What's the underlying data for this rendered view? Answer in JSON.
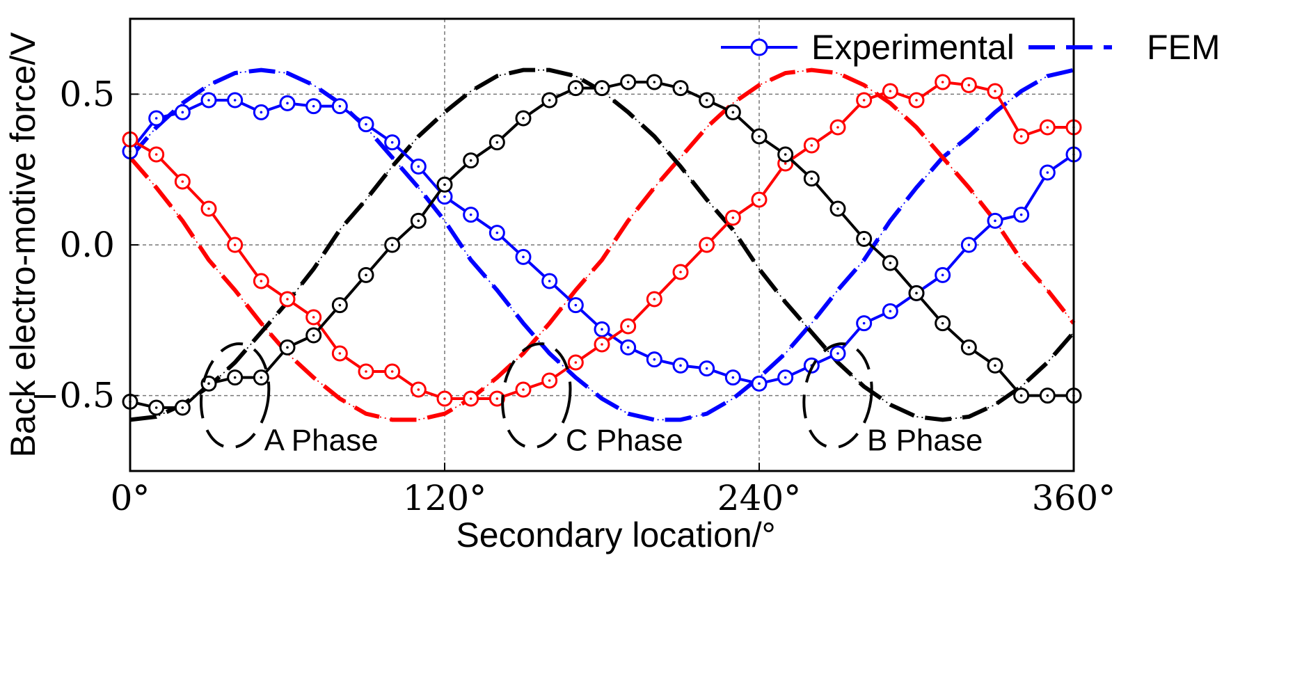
{
  "chart_data": {
    "type": "line",
    "title": "",
    "xlabel": "Secondary location/°",
    "ylabel": "Back electro-motive force/V",
    "xlim": [
      0,
      360
    ],
    "ylim": [
      -0.75,
      0.75
    ],
    "x_ticks": [
      0,
      120,
      240,
      360
    ],
    "x_tick_labels": [
      "0°",
      "120°",
      "240°",
      "360°"
    ],
    "y_ticks": [
      -0.5,
      0.0,
      0.5
    ],
    "y_tick_labels": [
      "−0.5",
      "0.0",
      "0.5"
    ],
    "grid": true,
    "legend": {
      "placement": "top-right",
      "entries": [
        {
          "label": "Experimental",
          "style": "solid-circle-markers",
          "color": "#0000ff"
        },
        {
          "label": "FEM",
          "style": "dashed",
          "color": "#0000ff"
        }
      ]
    },
    "colors": {
      "phase_a": "#ff0000",
      "phase_b": "#0000ff",
      "phase_c": "#000000"
    },
    "fem_model": {
      "amplitude": 0.58
    },
    "series": [
      {
        "kind": "FEM",
        "color": "#0000ff",
        "x": [
          0,
          10,
          20,
          30,
          40,
          50,
          60,
          70,
          80,
          90,
          100,
          110,
          120,
          130,
          140,
          150,
          160,
          170,
          180,
          190,
          200,
          210,
          220,
          230,
          240,
          250,
          260,
          270,
          280,
          290,
          300,
          310,
          320,
          330,
          340,
          350,
          360
        ],
        "y": [
          0.29,
          0.39,
          0.47,
          0.53,
          0.57,
          0.58,
          0.57,
          0.53,
          0.47,
          0.39,
          0.29,
          0.19,
          0.08,
          -0.05,
          -0.15,
          -0.26,
          -0.36,
          -0.44,
          -0.51,
          -0.56,
          -0.58,
          -0.58,
          -0.56,
          -0.51,
          -0.44,
          -0.36,
          -0.26,
          -0.15,
          -0.05,
          0.08,
          0.19,
          0.29,
          0.36,
          0.44,
          0.51,
          0.56,
          0.58
        ]
      },
      {
        "kind": "FEM",
        "color": "#ff0000",
        "x": [
          0,
          10,
          20,
          30,
          40,
          50,
          60,
          70,
          80,
          90,
          100,
          110,
          120,
          130,
          140,
          150,
          160,
          170,
          180,
          190,
          200,
          210,
          220,
          230,
          240,
          250,
          260,
          270,
          280,
          290,
          300,
          310,
          320,
          330,
          340,
          350,
          360
        ],
        "y": [
          0.29,
          0.19,
          0.08,
          -0.05,
          -0.15,
          -0.26,
          -0.36,
          -0.44,
          -0.51,
          -0.56,
          -0.58,
          -0.58,
          -0.56,
          -0.51,
          -0.44,
          -0.36,
          -0.26,
          -0.15,
          -0.05,
          0.08,
          0.19,
          0.29,
          0.39,
          0.47,
          0.53,
          0.57,
          0.58,
          0.57,
          0.53,
          0.47,
          0.39,
          0.29,
          0.19,
          0.08,
          -0.05,
          -0.15,
          -0.26
        ]
      },
      {
        "kind": "FEM",
        "color": "#000000",
        "x": [
          0,
          10,
          20,
          30,
          40,
          50,
          60,
          70,
          80,
          90,
          100,
          110,
          120,
          130,
          140,
          150,
          160,
          170,
          180,
          190,
          200,
          210,
          220,
          230,
          240,
          250,
          260,
          270,
          280,
          290,
          300,
          310,
          320,
          330,
          340,
          350,
          360
        ],
        "y": [
          -0.58,
          -0.57,
          -0.53,
          -0.47,
          -0.39,
          -0.29,
          -0.19,
          -0.08,
          0.05,
          0.15,
          0.26,
          0.36,
          0.44,
          0.51,
          0.56,
          0.58,
          0.58,
          0.56,
          0.51,
          0.44,
          0.36,
          0.26,
          0.15,
          0.05,
          -0.08,
          -0.19,
          -0.29,
          -0.39,
          -0.47,
          -0.53,
          -0.57,
          -0.58,
          -0.57,
          -0.53,
          -0.47,
          -0.39,
          -0.29
        ]
      },
      {
        "kind": "Experimental",
        "color": "#0000ff",
        "x": [
          0,
          10,
          20,
          30,
          40,
          50,
          60,
          70,
          80,
          90,
          100,
          110,
          120,
          130,
          140,
          150,
          160,
          170,
          180,
          190,
          200,
          210,
          220,
          230,
          240,
          250,
          260,
          270,
          280,
          290,
          300,
          310,
          320,
          330,
          340,
          350,
          360
        ],
        "y": [
          0.31,
          0.42,
          0.44,
          0.48,
          0.48,
          0.44,
          0.47,
          0.46,
          0.46,
          0.4,
          0.34,
          0.26,
          0.16,
          0.1,
          0.04,
          -0.04,
          -0.12,
          -0.2,
          -0.28,
          -0.34,
          -0.38,
          -0.4,
          -0.41,
          -0.44,
          -0.46,
          -0.44,
          -0.4,
          -0.36,
          -0.26,
          -0.22,
          -0.16,
          -0.1,
          0.0,
          0.08,
          0.1,
          0.24,
          0.3
        ]
      },
      {
        "kind": "Experimental",
        "color": "#ff0000",
        "x": [
          0,
          10,
          20,
          30,
          40,
          50,
          60,
          70,
          80,
          90,
          100,
          110,
          120,
          130,
          140,
          150,
          160,
          170,
          180,
          190,
          200,
          210,
          220,
          230,
          240,
          250,
          260,
          270,
          280,
          290,
          300,
          310,
          320,
          330,
          340,
          350,
          360
        ],
        "y": [
          0.35,
          0.3,
          0.21,
          0.12,
          0.0,
          -0.12,
          -0.18,
          -0.24,
          -0.36,
          -0.42,
          -0.42,
          -0.48,
          -0.51,
          -0.51,
          -0.51,
          -0.48,
          -0.45,
          -0.39,
          -0.33,
          -0.27,
          -0.18,
          -0.09,
          0.0,
          0.09,
          0.15,
          0.27,
          0.33,
          0.39,
          0.48,
          0.51,
          0.48,
          0.54,
          0.53,
          0.51,
          0.36,
          0.39,
          0.39
        ]
      },
      {
        "kind": "Experimental",
        "color": "#000000",
        "x": [
          0,
          10,
          20,
          30,
          40,
          50,
          60,
          70,
          80,
          90,
          100,
          110,
          120,
          130,
          140,
          150,
          160,
          170,
          180,
          190,
          200,
          210,
          220,
          230,
          240,
          250,
          260,
          270,
          280,
          290,
          300,
          310,
          320,
          330,
          340,
          350,
          360
        ],
        "y": [
          -0.52,
          -0.54,
          -0.54,
          -0.46,
          -0.44,
          -0.44,
          -0.34,
          -0.3,
          -0.2,
          -0.1,
          0.0,
          0.08,
          0.2,
          0.28,
          0.34,
          0.42,
          0.48,
          0.52,
          0.52,
          0.54,
          0.54,
          0.52,
          0.48,
          0.44,
          0.36,
          0.3,
          0.22,
          0.12,
          0.02,
          -0.06,
          -0.16,
          -0.26,
          -0.34,
          -0.4,
          -0.5,
          -0.5,
          -0.5
        ]
      }
    ],
    "annotations": [
      {
        "text": "A Phase",
        "x": 40,
        "y": -0.5
      },
      {
        "text": "C Phase",
        "x": 155,
        "y": -0.5
      },
      {
        "text": "B Phase",
        "x": 270,
        "y": -0.5
      }
    ]
  }
}
